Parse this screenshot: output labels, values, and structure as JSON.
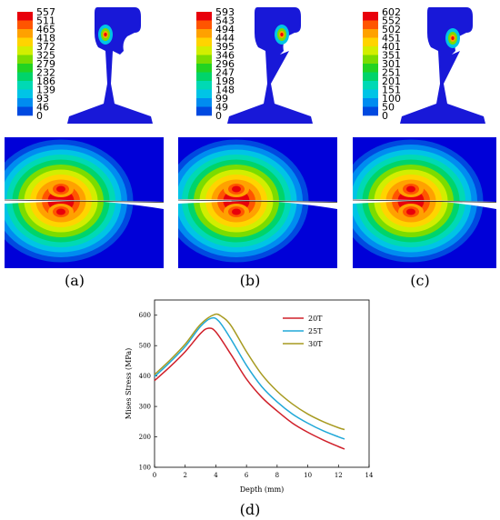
{
  "panels": [
    {
      "label": "(a)",
      "legend": [
        "557",
        "511",
        "465",
        "418",
        "372",
        "325",
        "279",
        "232",
        "186",
        "139",
        "93",
        "46",
        "0"
      ]
    },
    {
      "label": "(b)",
      "legend": [
        "593",
        "543",
        "494",
        "444",
        "395",
        "346",
        "296",
        "247",
        "198",
        "148",
        "99",
        "49",
        "0"
      ]
    },
    {
      "label": "(c)",
      "legend": [
        "602",
        "552",
        "502",
        "451",
        "401",
        "351",
        "301",
        "251",
        "201",
        "151",
        "100",
        "50",
        "0"
      ]
    }
  ],
  "legend_colors": [
    "#e8000b",
    "#ff5500",
    "#ffa100",
    "#ffd400",
    "#d2ee00",
    "#7bdc00",
    "#22d322",
    "#00d46a",
    "#00d9b4",
    "#00c4e6",
    "#008cf0",
    "#0049e0",
    "#0000d8"
  ],
  "contour_colors": [
    "#0000d8",
    "#0049e0",
    "#008cf0",
    "#00c4e6",
    "#00d9b4",
    "#00d46a",
    "#7bdc00",
    "#d2ee00",
    "#ffd400",
    "#ffa100",
    "#ff5500",
    "#e8000b"
  ],
  "chart_data": {
    "type": "line",
    "xlabel": "Depth (mm)",
    "ylabel": "Mises Stress (MPa)",
    "xlim": [
      0,
      14
    ],
    "ylim": [
      100,
      650
    ],
    "xticks": [
      0,
      2,
      4,
      6,
      8,
      10,
      12,
      14
    ],
    "yticks": [
      100,
      200,
      300,
      400,
      500,
      600
    ],
    "legend_position": "top-right",
    "series": [
      {
        "name": "20T",
        "color": "#d0202a",
        "x": [
          0,
          1,
          2,
          3,
          3.5,
          4,
          5,
          6,
          7,
          8,
          9,
          10,
          11,
          12,
          12.4
        ],
        "y": [
          385,
          430,
          480,
          540,
          557,
          545,
          470,
          390,
          330,
          285,
          245,
          215,
          190,
          168,
          160
        ]
      },
      {
        "name": "25T",
        "color": "#20a8d8",
        "x": [
          0,
          1,
          2,
          3,
          3.7,
          4.2,
          5,
          6,
          7,
          8,
          9,
          10,
          11,
          12,
          12.4
        ],
        "y": [
          398,
          445,
          497,
          563,
          590,
          580,
          520,
          435,
          365,
          315,
          275,
          245,
          220,
          200,
          193
        ]
      },
      {
        "name": "30T",
        "color": "#a79a20",
        "x": [
          0,
          1,
          2,
          3,
          3.9,
          4.4,
          5,
          6,
          7,
          8,
          9,
          10,
          11,
          12,
          12.4
        ],
        "y": [
          405,
          452,
          505,
          570,
          602,
          595,
          565,
          480,
          405,
          350,
          308,
          275,
          250,
          230,
          224
        ]
      }
    ]
  },
  "chart_label": "(d)"
}
